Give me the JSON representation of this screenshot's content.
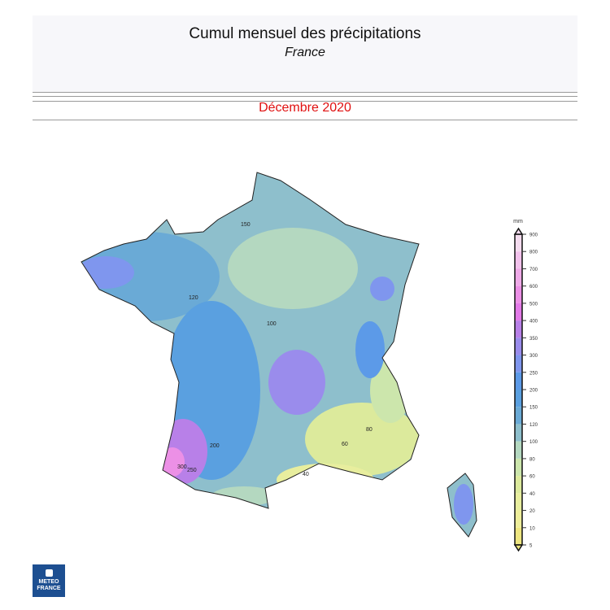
{
  "header": {
    "title": "Cumul mensuel des précipitations",
    "subtitle": "France",
    "period": "Décembre 2020"
  },
  "legend": {
    "unit": "mm",
    "levels": [
      900,
      800,
      700,
      600,
      500,
      400,
      350,
      300,
      250,
      200,
      150,
      120,
      100,
      80,
      60,
      40,
      20,
      10,
      5
    ],
    "colors": [
      "#f4dcef",
      "#f2c2ec",
      "#efaae8",
      "#ec90e6",
      "#e37ae8",
      "#b880e8",
      "#9a8cec",
      "#7f96ee",
      "#5c9ae8",
      "#5aa0e0",
      "#6aaad6",
      "#8ebfcc",
      "#b4d8c0",
      "#cce6ac",
      "#dcea9c",
      "#e8ee9e",
      "#eeee9a",
      "#eee680"
    ]
  },
  "map": {
    "region": "France",
    "contour_labels": [
      "150",
      "120",
      "100",
      "80",
      "60",
      "40",
      "200",
      "250",
      "300"
    ]
  },
  "logo": {
    "line1": "METEO",
    "line2": "FRANCE"
  }
}
